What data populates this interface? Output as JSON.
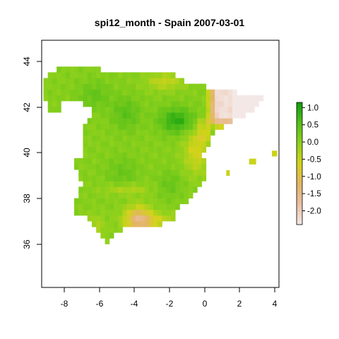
{
  "title": "spi12_month - Spain 2007-03-01",
  "map": {
    "lon_range": [
      -9.3,
      4.2
    ],
    "lat_range": [
      34.0,
      44.8
    ],
    "x_ticks": [
      "-8",
      "-6",
      "-4",
      "-2",
      "0",
      "2",
      "4"
    ],
    "y_ticks": [
      "44",
      "42",
      "40",
      "38",
      "36"
    ]
  },
  "legend": {
    "ticks": [
      "1.0",
      "0.5",
      "0.0",
      "-0.5",
      "-1.0",
      "-1.5",
      "-2.0"
    ],
    "range": [
      -2.4,
      1.15
    ],
    "colors": [
      "#f4e8e6",
      "#e9c0a4",
      "#e3b463",
      "#d3d31a",
      "#8ed11c",
      "#55bf19",
      "#0e9e0d"
    ]
  }
}
